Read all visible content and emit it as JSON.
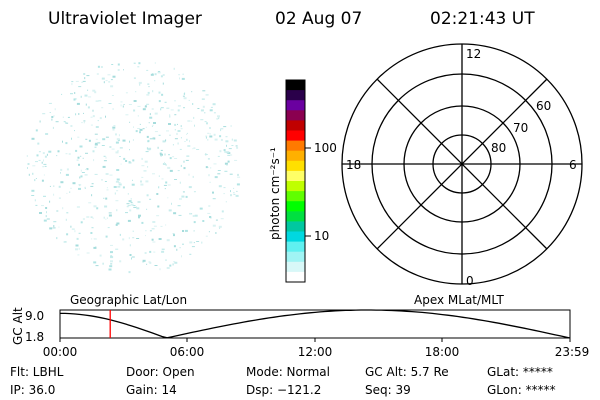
{
  "header": {
    "instrument": "Ultraviolet Imager",
    "date": "02 Aug 07",
    "time": "02:21:43 UT"
  },
  "colorbar": {
    "label": "photon cm⁻²s⁻¹",
    "tick_labels": [
      "100",
      "10"
    ],
    "colors": [
      "#000000",
      "#2a004a",
      "#6a00a0",
      "#8a0050",
      "#c00000",
      "#ff0000",
      "#ff7a00",
      "#ffb000",
      "#ffe000",
      "#ffff66",
      "#c0ff00",
      "#60ff00",
      "#00ff00",
      "#00e040",
      "#00c8a0",
      "#00d8e0",
      "#60f0f0",
      "#a0f4f4",
      "#d8f8f8",
      "#ffffff"
    ]
  },
  "polar_plot": {
    "mlt_labels": [
      "12",
      "18",
      "6",
      "0"
    ],
    "lat_labels": [
      "60",
      "70",
      "80"
    ]
  },
  "timeline": {
    "left_title": "Geographic Lat/Lon",
    "right_title": "Apex MLat/MLT",
    "axis_label": "GC Alt",
    "y_ticks": [
      "9.0",
      "1.8"
    ],
    "x_ticks": [
      "00:00",
      "06:00",
      "12:00",
      "18:00",
      "23:59"
    ],
    "cursor_color": "#ff0000",
    "cursor_time_hours": 2.36,
    "altitude_range": [
      1.8,
      9.0
    ]
  },
  "status": {
    "row1": [
      "Flt: LBHL",
      "Door: Open",
      "Mode: Normal",
      "GC Alt: 5.7 Re",
      "GLat: *****"
    ],
    "row2": [
      "IP: 36.0",
      "Gain: 14",
      "Dsp: −121.2",
      "Seq: 39",
      "GLon: *****"
    ]
  }
}
